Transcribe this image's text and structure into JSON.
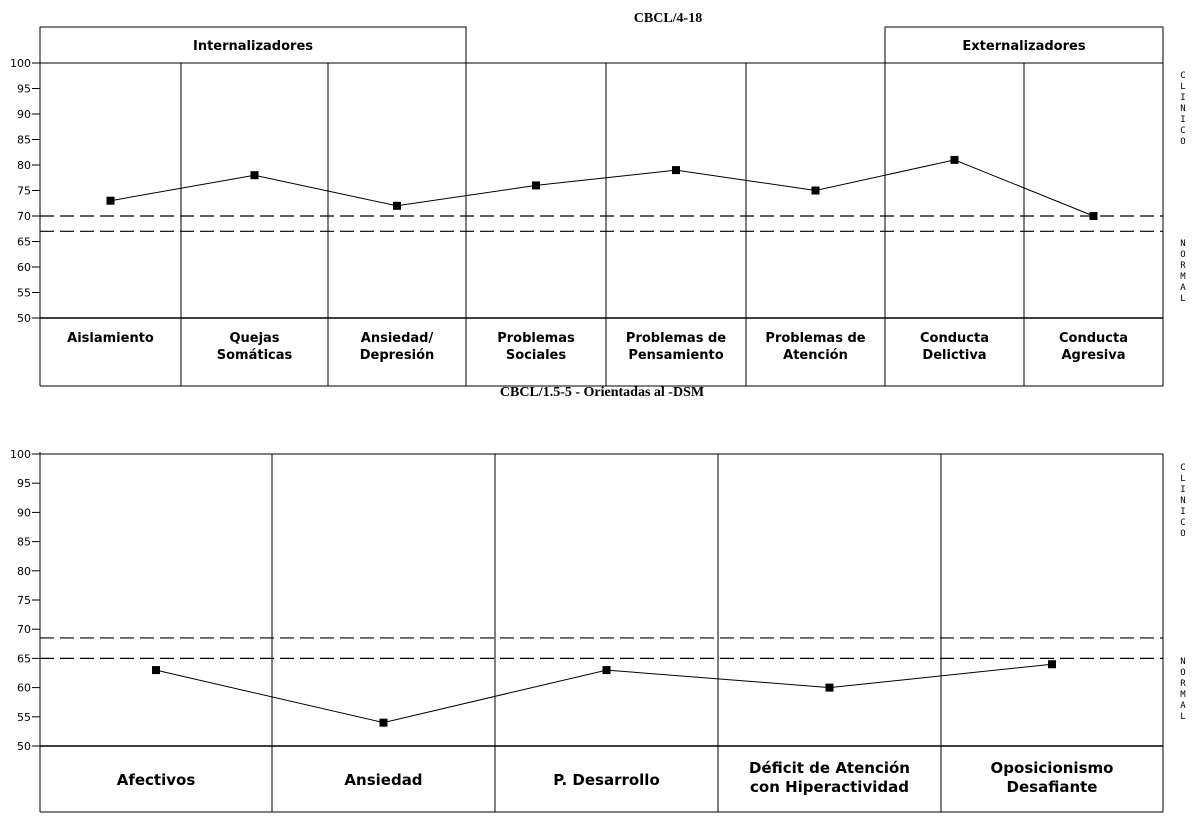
{
  "chart_data": [
    {
      "type": "line",
      "title": "CBCL/4-18",
      "groups": [
        {
          "label": "Internalizadores",
          "from": 0,
          "to": 2
        },
        {
          "label": "Externalizadores",
          "from": 6,
          "to": 7
        }
      ],
      "categories": [
        [
          "Aislamiento"
        ],
        [
          "Quejas",
          "Somáticas"
        ],
        [
          "Ansiedad/",
          "Depresión"
        ],
        [
          "Problemas",
          "Sociales"
        ],
        [
          "Problemas de",
          "Pensamiento"
        ],
        [
          "Problemas de",
          "Atención"
        ],
        [
          "Conducta",
          "Delictiva"
        ],
        [
          "Conducta",
          "Agresiva"
        ]
      ],
      "values": [
        73,
        78,
        72,
        76,
        79,
        75,
        81,
        70
      ],
      "ylim": [
        50,
        100
      ],
      "yticks": [
        "50",
        "55",
        "60",
        "65",
        "70",
        "75",
        "80",
        "85",
        "90",
        "95",
        "100"
      ],
      "thresholds": [
        70,
        67
      ],
      "right_labels": {
        "upper": "CLINICO",
        "lower": "NORMAL"
      }
    },
    {
      "type": "line",
      "title": "CBCL/1.5-5 - Orientadas al -DSM",
      "groups": [],
      "categories": [
        [
          "Afectivos"
        ],
        [
          "Ansiedad"
        ],
        [
          "P. Desarrollo"
        ],
        [
          "Déficit de Atención",
          "con Hiperactividad"
        ],
        [
          "Oposicionismo",
          "Desafiante"
        ]
      ],
      "values": [
        63,
        54,
        63,
        60,
        64
      ],
      "ylim": [
        50,
        100
      ],
      "yticks": [
        "50",
        "55",
        "60",
        "65",
        "70",
        "75",
        "80",
        "85",
        "90",
        "95",
        "100"
      ],
      "thresholds": [
        68.5,
        65
      ],
      "right_labels": {
        "upper": "CLINICO",
        "lower": "NORMAL"
      }
    }
  ]
}
